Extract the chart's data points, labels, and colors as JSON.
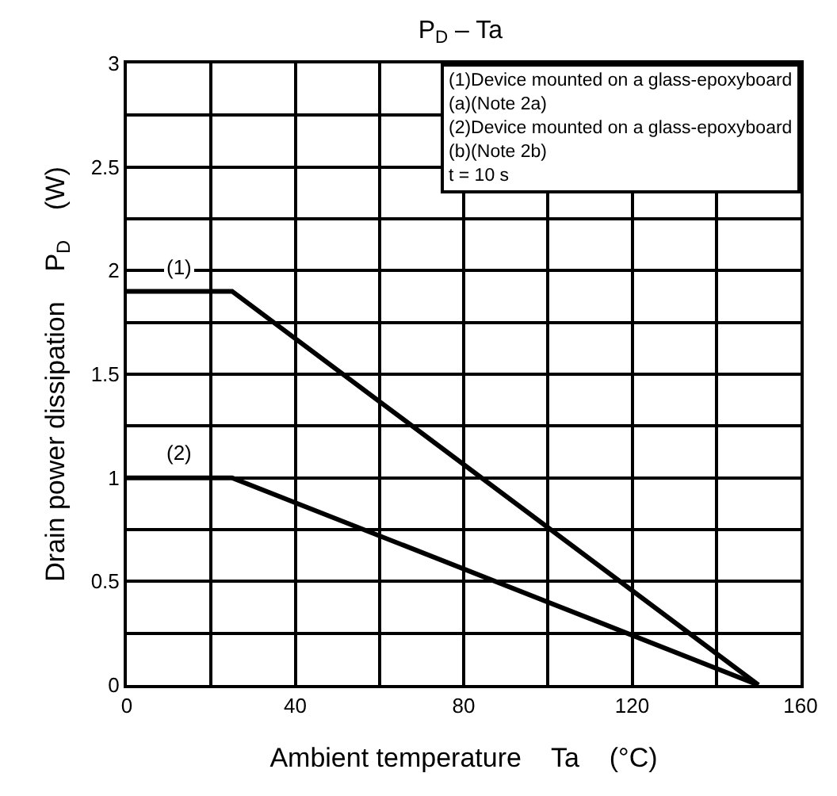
{
  "chart_data": {
    "type": "line",
    "title": "P$_{D}$ – Ta",
    "xlabel": "Ambient temperature    Ta    (°C)",
    "ylabel": "Drain power dissipation    P$_{D}$    (W)",
    "series": [
      {
        "name": "(1)",
        "color": "#000000",
        "x": [
          0,
          25,
          150
        ],
        "values": [
          1.9,
          1.9,
          0
        ]
      },
      {
        "name": "(2)",
        "color": "#000000",
        "x": [
          0,
          25,
          150
        ],
        "values": [
          1,
          1,
          0
        ]
      }
    ],
    "annotations": [
      "(1)Device mounted on a glass-epoxyboard\n(a)(Note 2a)\n(2)Device mounted on a glass-epoxyboard\n(b)(Note 2b)\nt = 10 s"
    ],
    "xlim": [
      0,
      160
    ],
    "ylim": [
      0,
      3
    ],
    "xticks": [
      0,
      {
        "value": 20,
        "label": null
      },
      40,
      {
        "value": 60,
        "label": null
      },
      80,
      {
        "value": 100,
        "label": null
      },
      120,
      {
        "value": 140,
        "label": null
      },
      160
    ],
    "yticks": [
      0,
      {
        "value": 0.25,
        "label": null
      },
      0.5,
      {
        "value": 0.75,
        "label": null
      },
      1,
      {
        "value": 1.25,
        "label": null
      },
      1.5,
      {
        "value": 1.75,
        "label": null
      },
      2,
      {
        "value": 2.25,
        "label": null
      },
      2.5,
      {
        "value": 2.75,
        "label": null
      },
      3
    ],
    "grid": true,
    "legend": false,
    "marker": "none",
    "line_style": "solid"
  }
}
